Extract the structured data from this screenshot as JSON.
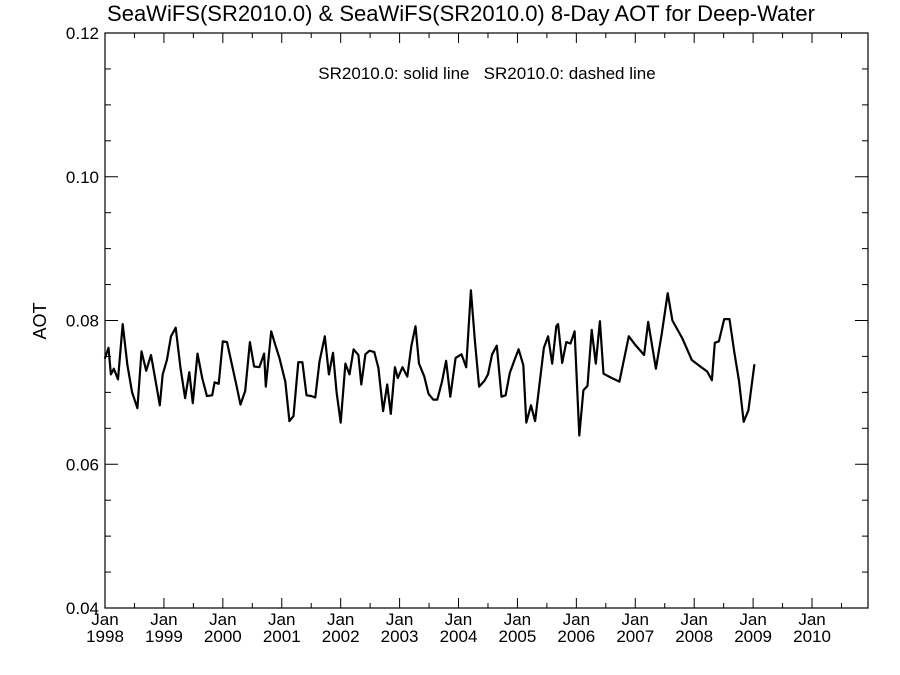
{
  "chart_data": {
    "type": "line",
    "title": "SeaWiFS(SR2010.0) & SeaWiFS(SR2010.0) 8-Day AOT for Deep-Water",
    "legend_text": "SR2010.0: solid line   SR2010.0: dashed line",
    "legend_position": "top-center",
    "ylabel": "AOT",
    "xlabel": "",
    "ylim": [
      0.04,
      0.12
    ],
    "yticks": [
      "0.04",
      "0.06",
      "0.08",
      "0.10",
      "0.12"
    ],
    "xlim": [
      1998.0,
      2010.95
    ],
    "xtick_month": "Jan",
    "xtick_years": [
      "1998",
      "1999",
      "2000",
      "2001",
      "2002",
      "2003",
      "2004",
      "2005",
      "2006",
      "2007",
      "2008",
      "2009",
      "2010"
    ],
    "grid": false,
    "series": [
      {
        "style": "solid",
        "color": "#000000",
        "points": [
          [
            1998.0,
            0.0748
          ],
          [
            1998.06,
            0.0762
          ],
          [
            1998.1,
            0.0725
          ],
          [
            1998.15,
            0.0733
          ],
          [
            1998.22,
            0.0718
          ],
          [
            1998.3,
            0.0795
          ],
          [
            1998.38,
            0.0738
          ],
          [
            1998.46,
            0.07
          ],
          [
            1998.55,
            0.0678
          ],
          [
            1998.62,
            0.0757
          ],
          [
            1998.7,
            0.073
          ],
          [
            1998.78,
            0.0752
          ],
          [
            1998.86,
            0.0715
          ],
          [
            1998.93,
            0.0682
          ],
          [
            1998.98,
            0.0725
          ],
          [
            1999.05,
            0.0745
          ],
          [
            1999.12,
            0.0778
          ],
          [
            1999.2,
            0.079
          ],
          [
            1999.28,
            0.0735
          ],
          [
            1999.36,
            0.0692
          ],
          [
            1999.43,
            0.0728
          ],
          [
            1999.49,
            0.0685
          ],
          [
            1999.57,
            0.0754
          ],
          [
            1999.65,
            0.072
          ],
          [
            1999.73,
            0.0695
          ],
          [
            1999.82,
            0.0696
          ],
          [
            1999.86,
            0.0714
          ],
          [
            1999.93,
            0.0712
          ],
          [
            2000.0,
            0.0771
          ],
          [
            2000.07,
            0.077
          ],
          [
            2000.15,
            0.074
          ],
          [
            2000.23,
            0.071
          ],
          [
            2000.3,
            0.0683
          ],
          [
            2000.38,
            0.0702
          ],
          [
            2000.46,
            0.077
          ],
          [
            2000.53,
            0.0736
          ],
          [
            2000.62,
            0.0735
          ],
          [
            2000.7,
            0.0754
          ],
          [
            2000.73,
            0.0708
          ],
          [
            2000.82,
            0.0785
          ],
          [
            2000.89,
            0.0766
          ],
          [
            2000.96,
            0.0748
          ],
          [
            2001.06,
            0.0715
          ],
          [
            2001.13,
            0.066
          ],
          [
            2001.2,
            0.0667
          ],
          [
            2001.28,
            0.0742
          ],
          [
            2001.35,
            0.0742
          ],
          [
            2001.42,
            0.0696
          ],
          [
            2001.5,
            0.0695
          ],
          [
            2001.57,
            0.0693
          ],
          [
            2001.64,
            0.0743
          ],
          [
            2001.73,
            0.0778
          ],
          [
            2001.8,
            0.0725
          ],
          [
            2001.87,
            0.0755
          ],
          [
            2001.93,
            0.07
          ],
          [
            2002.0,
            0.0658
          ],
          [
            2002.08,
            0.074
          ],
          [
            2002.15,
            0.0725
          ],
          [
            2002.22,
            0.076
          ],
          [
            2002.3,
            0.0752
          ],
          [
            2002.35,
            0.0711
          ],
          [
            2002.42,
            0.0753
          ],
          [
            2002.49,
            0.0758
          ],
          [
            2002.57,
            0.0756
          ],
          [
            2002.64,
            0.0734
          ],
          [
            2002.72,
            0.0674
          ],
          [
            2002.79,
            0.0711
          ],
          [
            2002.85,
            0.067
          ],
          [
            2002.92,
            0.0735
          ],
          [
            2002.97,
            0.072
          ],
          [
            2003.05,
            0.0735
          ],
          [
            2003.13,
            0.0722
          ],
          [
            2003.2,
            0.0765
          ],
          [
            2003.27,
            0.0792
          ],
          [
            2003.33,
            0.074
          ],
          [
            2003.42,
            0.0722
          ],
          [
            2003.49,
            0.0698
          ],
          [
            2003.57,
            0.069
          ],
          [
            2003.64,
            0.069
          ],
          [
            2003.72,
            0.0715
          ],
          [
            2003.79,
            0.0744
          ],
          [
            2003.86,
            0.0694
          ],
          [
            2003.95,
            0.0748
          ],
          [
            2004.05,
            0.0753
          ],
          [
            2004.13,
            0.0735
          ],
          [
            2004.21,
            0.0842
          ],
          [
            2004.28,
            0.077
          ],
          [
            2004.35,
            0.0708
          ],
          [
            2004.44,
            0.0716
          ],
          [
            2004.5,
            0.0725
          ],
          [
            2004.57,
            0.0753
          ],
          [
            2004.65,
            0.0765
          ],
          [
            2004.73,
            0.0694
          ],
          [
            2004.8,
            0.0696
          ],
          [
            2004.87,
            0.0727
          ],
          [
            2004.95,
            0.0745
          ],
          [
            2005.02,
            0.076
          ],
          [
            2005.1,
            0.0738
          ],
          [
            2005.15,
            0.0658
          ],
          [
            2005.23,
            0.0682
          ],
          [
            2005.3,
            0.066
          ],
          [
            2005.37,
            0.0708
          ],
          [
            2005.45,
            0.0762
          ],
          [
            2005.52,
            0.0778
          ],
          [
            2005.59,
            0.074
          ],
          [
            2005.66,
            0.0792
          ],
          [
            2005.69,
            0.0795
          ],
          [
            2005.76,
            0.0741
          ],
          [
            2005.83,
            0.077
          ],
          [
            2005.9,
            0.0768
          ],
          [
            2005.97,
            0.0785
          ],
          [
            2006.05,
            0.064
          ],
          [
            2006.12,
            0.0703
          ],
          [
            2006.19,
            0.0709
          ],
          [
            2006.26,
            0.0787
          ],
          [
            2006.33,
            0.074
          ],
          [
            2006.4,
            0.0799
          ],
          [
            2006.46,
            0.0726
          ],
          [
            2006.6,
            0.072
          ],
          [
            2006.73,
            0.0715
          ],
          [
            2006.89,
            0.0778
          ],
          [
            2007.0,
            0.0766
          ],
          [
            2007.15,
            0.0752
          ],
          [
            2007.22,
            0.0798
          ],
          [
            2007.35,
            0.0733
          ],
          [
            2007.45,
            0.0782
          ],
          [
            2007.55,
            0.0838
          ],
          [
            2007.63,
            0.08
          ],
          [
            2007.8,
            0.0775
          ],
          [
            2007.96,
            0.0745
          ],
          [
            2008.12,
            0.0735
          ],
          [
            2008.22,
            0.0729
          ],
          [
            2008.3,
            0.0717
          ],
          [
            2008.35,
            0.0769
          ],
          [
            2008.42,
            0.0771
          ],
          [
            2008.51,
            0.0802
          ],
          [
            2008.6,
            0.0802
          ],
          [
            2008.68,
            0.0756
          ],
          [
            2008.76,
            0.0716
          ],
          [
            2008.84,
            0.0659
          ],
          [
            2008.92,
            0.0675
          ],
          [
            2009.02,
            0.0738
          ]
        ]
      }
    ]
  }
}
